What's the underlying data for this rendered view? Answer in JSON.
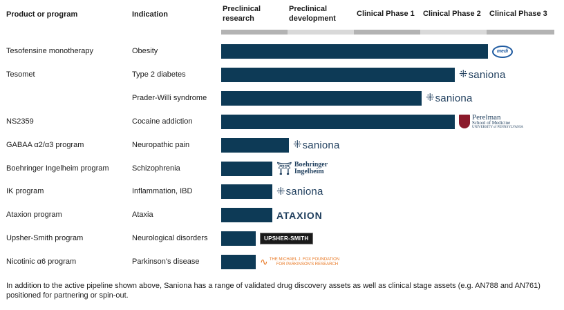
{
  "headers": {
    "product": "Product or program",
    "indication": "Indication",
    "stages": [
      "Preclinical research",
      "Preclinical development",
      "Clinical Phase 1",
      "Clinical Phase 2",
      "Clinical Phase 3"
    ]
  },
  "colors": {
    "bar": "#0d3a56",
    "stage_band_dark": "#b3b3b3",
    "stage_band_light": "#d9d9d9"
  },
  "chart_data": {
    "type": "bar",
    "orientation": "horizontal",
    "stages": [
      "Preclinical research",
      "Preclinical development",
      "Clinical Phase 1",
      "Clinical Phase 2",
      "Clinical Phase 3"
    ],
    "rows": [
      {
        "product": "Tesofensine monotherapy",
        "indication": "Obesity",
        "progress_stages": 4.0,
        "partner": "medi",
        "partner_type": "medi"
      },
      {
        "product": "Tesomet",
        "indication": "Type 2 diabetes",
        "progress_stages": 3.5,
        "partner": "saniona",
        "partner_type": "saniona"
      },
      {
        "product": "",
        "indication": "Prader-Willi syndrome",
        "progress_stages": 3.0,
        "partner": "saniona",
        "partner_type": "saniona"
      },
      {
        "product": "NS2359",
        "indication": "Cocaine addiction",
        "progress_stages": 3.5,
        "partner": "Perelman",
        "partner_sub": "School of Medicine",
        "partner_sub2": "UNIVERSITY of PENNSYLVANIA",
        "partner_type": "perelman"
      },
      {
        "product": "GABAA α2/α3 program",
        "indication": "Neuropathic pain",
        "progress_stages": 1.0,
        "partner": "saniona",
        "partner_type": "saniona"
      },
      {
        "product": "Boehringer Ingelheim program",
        "indication": "Schizophrenia",
        "progress_stages": 0.75,
        "partner": "Boehringer",
        "partner_sub": "Ingelheim",
        "partner_type": "bi"
      },
      {
        "product": "IK program",
        "indication": "Inflammation, IBD",
        "progress_stages": 0.75,
        "partner": "saniona",
        "partner_type": "saniona"
      },
      {
        "product": "Ataxion program",
        "indication": "Ataxia",
        "progress_stages": 0.75,
        "partner": "ATAXION",
        "partner_type": "ataxion"
      },
      {
        "product": "Upsher-Smith program",
        "indication": "Neurological disorders",
        "progress_stages": 0.5,
        "partner": "UPSHER-SMITH",
        "partner_type": "upsher"
      },
      {
        "product": "Nicotinic α6 program",
        "indication": "Parkinson's disease",
        "progress_stages": 0.5,
        "partner": "THE MICHAEL J. FOX FOUNDATION",
        "partner_sub": "FOR PARKINSON'S RESEARCH",
        "partner_type": "mjff"
      }
    ]
  },
  "footnote": "In addition to the active pipeline shown above, Saniona has a range of validated drug discovery assets as well as clinical stage assets (e.g. AN788 and AN761) positioned for partnering or spin-out."
}
